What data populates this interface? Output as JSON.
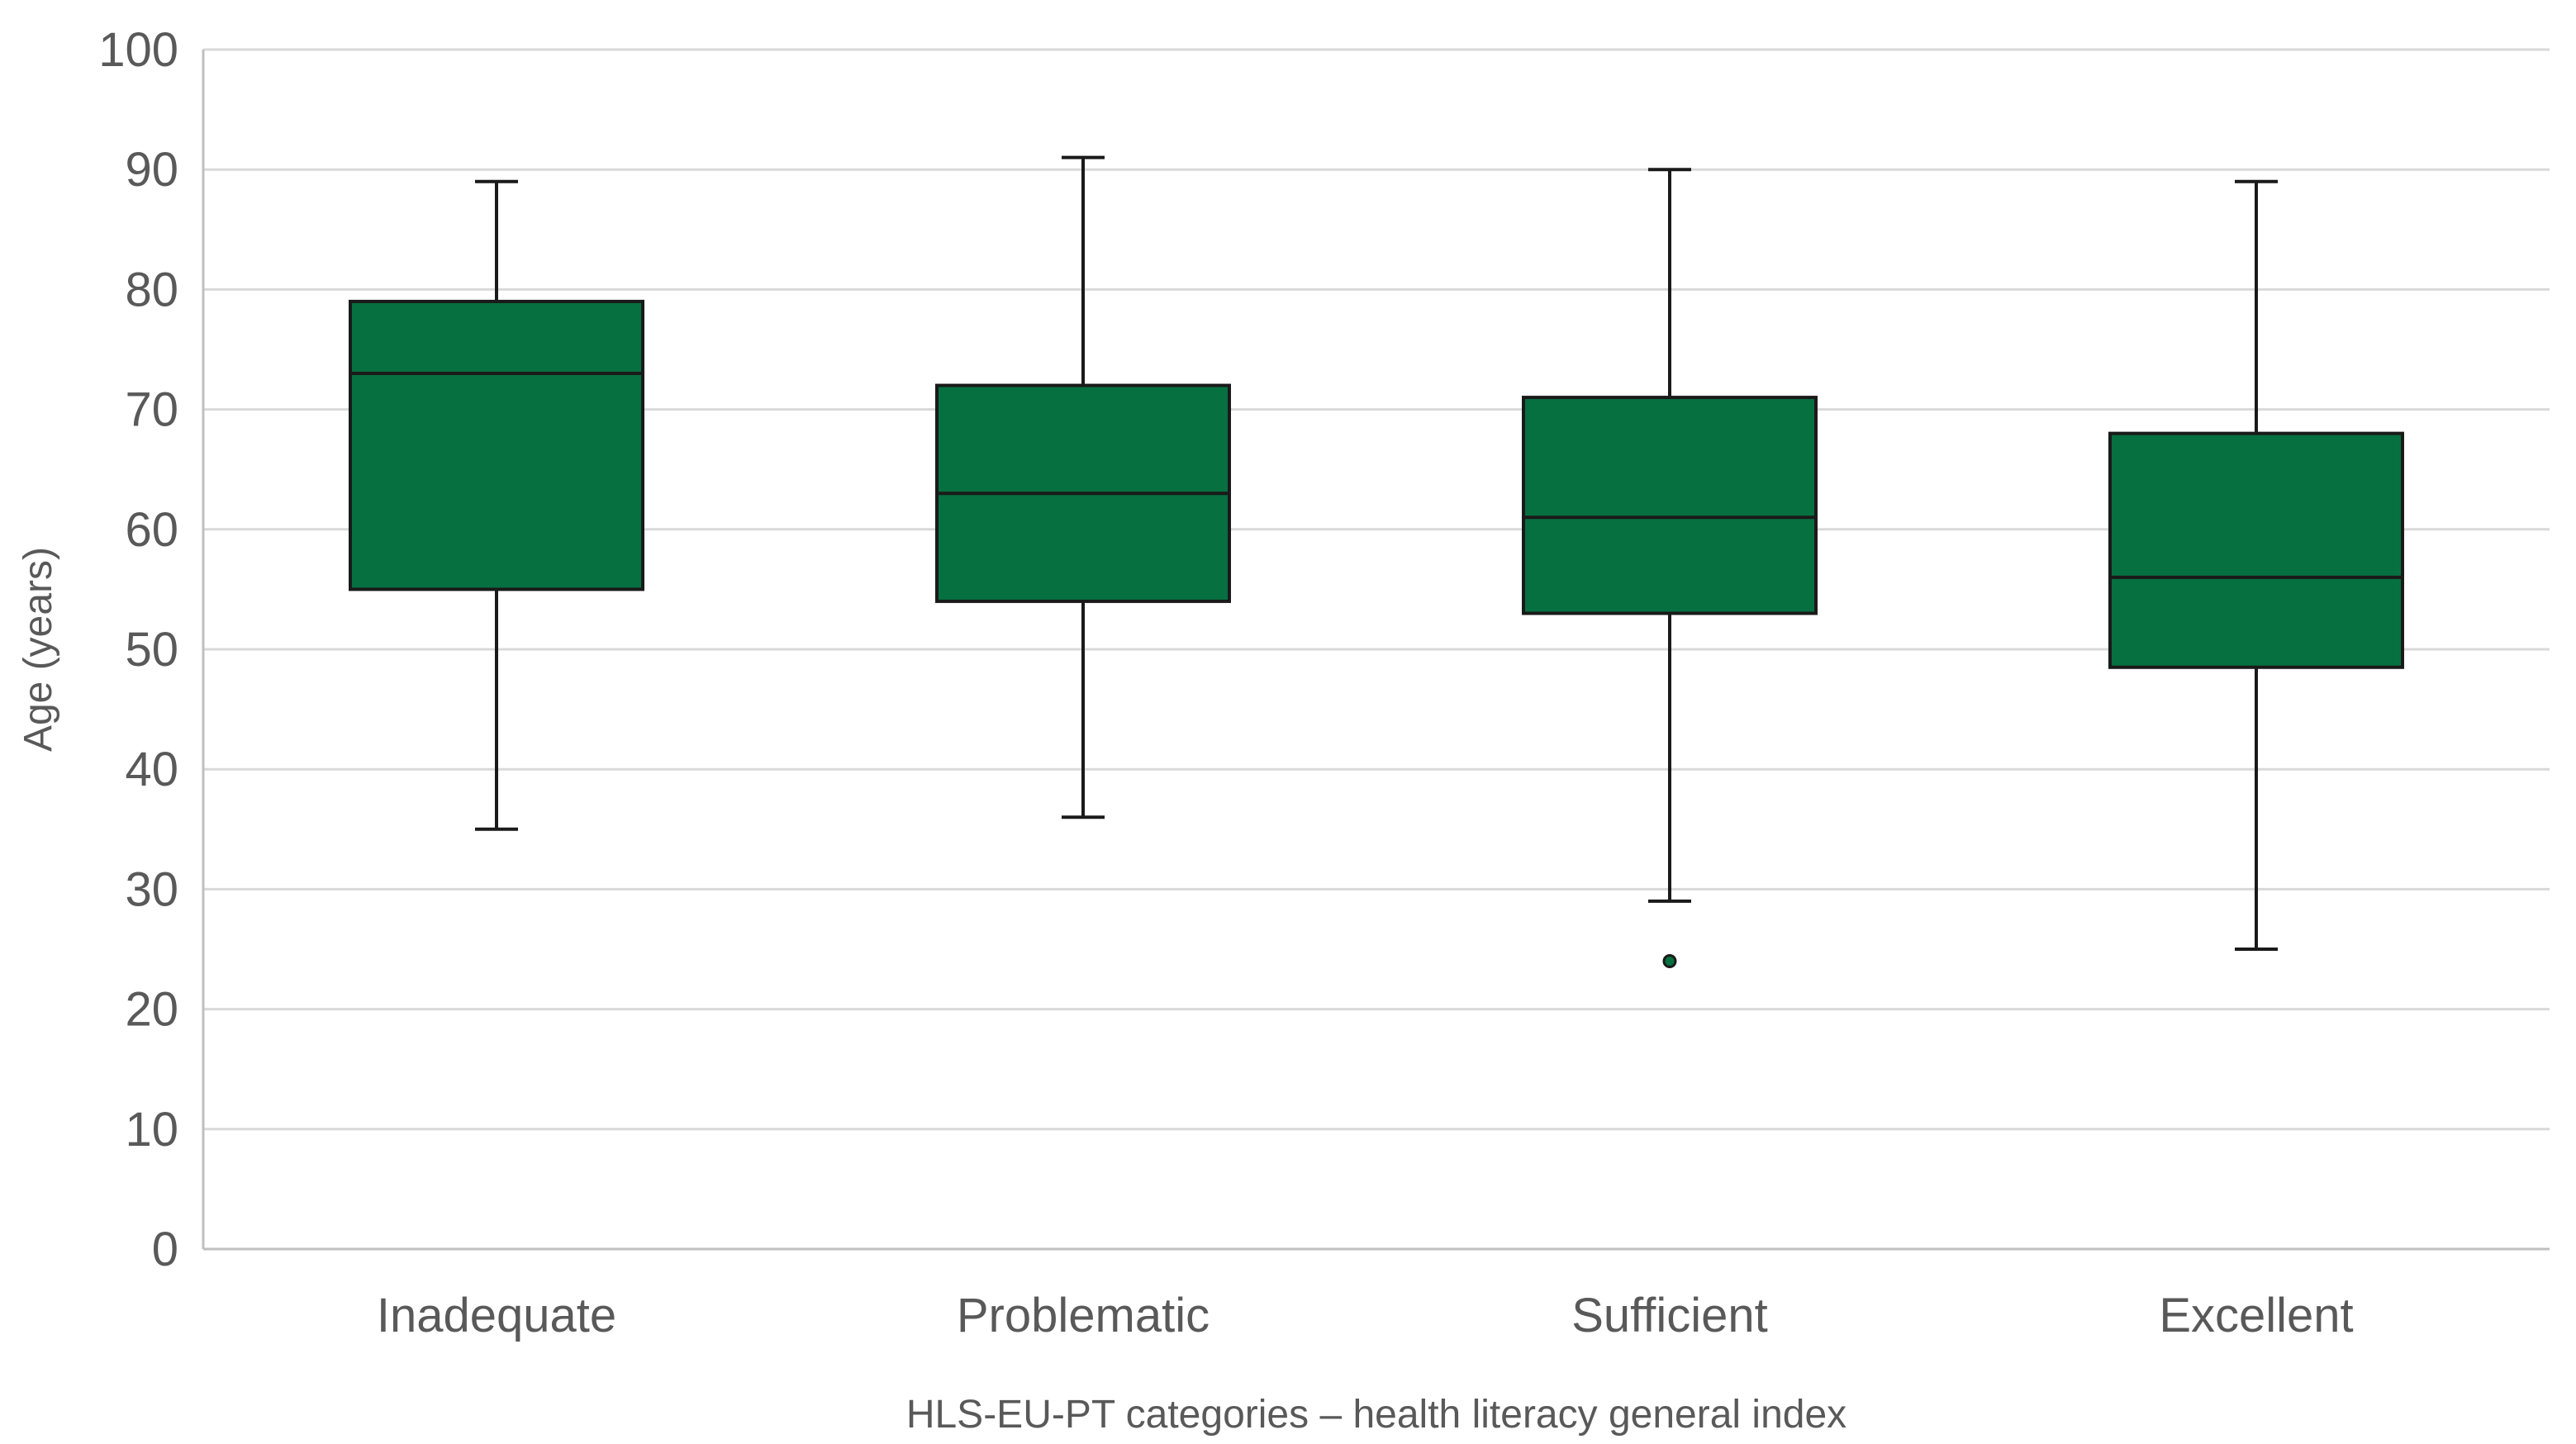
{
  "chart_data": {
    "type": "boxplot",
    "title": "",
    "xlabel": "HLS-EU-PT categories – health literacy general index",
    "ylabel": "Age (years)",
    "ylim": [
      0,
      100
    ],
    "yticks": [
      0,
      10,
      20,
      30,
      40,
      50,
      60,
      70,
      80,
      90,
      100
    ],
    "grid": true,
    "legend": "none",
    "categories": [
      "Inadequate",
      "Problematic",
      "Sufficient",
      "Excellent"
    ],
    "series": [
      {
        "boxes": [
          {
            "category": "Inadequate",
            "min": 35,
            "q1": 55,
            "median": 73,
            "q3": 79,
            "max": 89,
            "outliers": []
          },
          {
            "category": "Problematic",
            "min": 36,
            "q1": 54,
            "median": 63,
            "q3": 72,
            "max": 91,
            "outliers": []
          },
          {
            "category": "Sufficient",
            "min": 29,
            "q1": 53,
            "median": 61,
            "q3": 71,
            "max": 90,
            "outliers": [
              24
            ]
          },
          {
            "category": "Excellent",
            "min": 25,
            "q1": 48.5,
            "median": 56,
            "q3": 68,
            "max": 89,
            "outliers": []
          }
        ]
      }
    ],
    "colors": {
      "box_fill": "#067040",
      "box_stroke": "#1a1a1a",
      "whisker": "#1a1a1a",
      "grid": "#d9d9d9",
      "axis": "#bfbfbf",
      "text": "#595959"
    }
  }
}
